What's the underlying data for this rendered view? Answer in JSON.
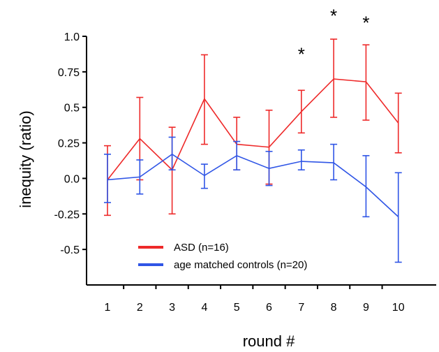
{
  "chart_data": {
    "type": "line",
    "xlabel": "round #",
    "ylabel": "inequity (ratio)",
    "x": [
      1,
      2,
      3,
      4,
      5,
      6,
      7,
      8,
      9,
      10
    ],
    "ylim": [
      -0.75,
      1.0
    ],
    "yticks": [
      "1.0",
      "0.75",
      "0.5",
      "0.25",
      "0.0",
      "-0.25",
      "-0.5"
    ],
    "ytick_values": [
      1.0,
      0.75,
      0.5,
      0.25,
      0.0,
      -0.25,
      -0.5
    ],
    "xticks": [
      "1",
      "2",
      "3",
      "4",
      "5",
      "6",
      "7",
      "8",
      "9",
      "10"
    ],
    "series": [
      {
        "name": "ASD (n=16)",
        "color": "#ee2a2a",
        "values": [
          -0.01,
          0.28,
          0.06,
          0.56,
          0.24,
          0.22,
          0.47,
          0.7,
          0.68,
          0.39
        ],
        "err_low": [
          -0.26,
          -0.01,
          -0.25,
          0.24,
          0.06,
          -0.04,
          0.32,
          0.43,
          0.41,
          0.18
        ],
        "err_high": [
          0.23,
          0.57,
          0.36,
          0.87,
          0.43,
          0.48,
          0.62,
          0.98,
          0.94,
          0.6
        ]
      },
      {
        "name": "age matched controls (n=20)",
        "color": "#2f55e6",
        "values": [
          -0.01,
          0.01,
          0.17,
          0.02,
          0.16,
          0.07,
          0.12,
          0.11,
          -0.06,
          -0.27
        ],
        "err_low": [
          -0.17,
          -0.11,
          0.06,
          -0.07,
          0.06,
          -0.05,
          0.06,
          -0.01,
          -0.27,
          -0.59
        ],
        "err_high": [
          0.17,
          0.13,
          0.29,
          0.1,
          0.26,
          0.19,
          0.2,
          0.24,
          0.16,
          0.04
        ]
      }
    ],
    "annotations": [
      {
        "text": "*",
        "x": 7,
        "y": 0.88
      },
      {
        "text": "*",
        "x": 8,
        "y": 1.15
      },
      {
        "text": "*",
        "x": 9,
        "y": 1.1
      }
    ],
    "legend": "lower-left",
    "grid": false
  }
}
